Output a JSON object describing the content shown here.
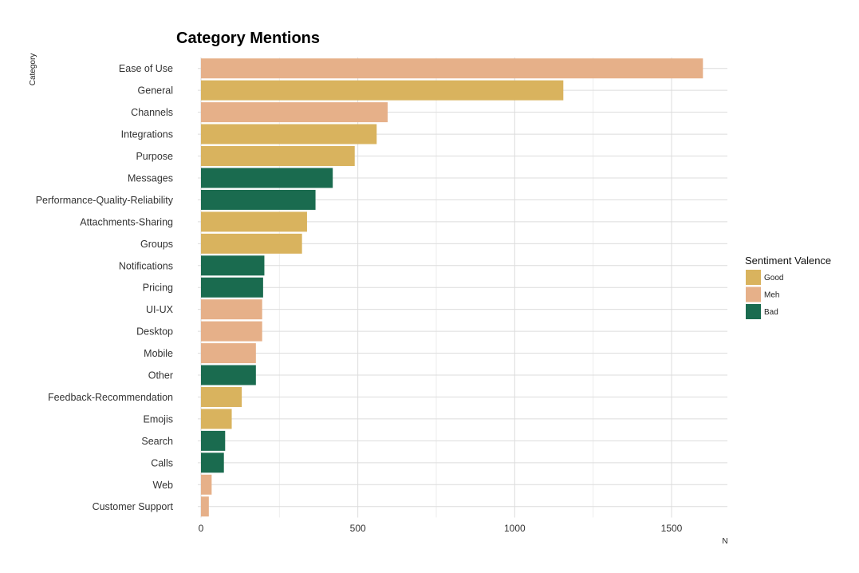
{
  "chart_data": {
    "type": "bar",
    "orientation": "horizontal",
    "title": "Category Mentions",
    "xlabel": "N",
    "ylabel": "Category",
    "xlim": [
      0,
      1680
    ],
    "x_ticks": [
      0,
      500,
      1000,
      1500
    ],
    "grid": true,
    "legend": {
      "title": "Sentiment Valence",
      "placement": "right",
      "entries": [
        {
          "label": "Good",
          "color": "#D9B35E"
        },
        {
          "label": "Meh",
          "color": "#E6B089"
        },
        {
          "label": "Bad",
          "color": "#1A6B4F"
        }
      ]
    },
    "bars": [
      {
        "category": "Ease of Use",
        "value": 1600,
        "sentiment": "Meh"
      },
      {
        "category": "General",
        "value": 1155,
        "sentiment": "Good"
      },
      {
        "category": "Channels",
        "value": 595,
        "sentiment": "Meh"
      },
      {
        "category": "Integrations",
        "value": 560,
        "sentiment": "Good"
      },
      {
        "category": "Purpose",
        "value": 490,
        "sentiment": "Good"
      },
      {
        "category": "Messages",
        "value": 420,
        "sentiment": "Bad"
      },
      {
        "category": "Performance-Quality-Reliability",
        "value": 365,
        "sentiment": "Bad"
      },
      {
        "category": "Attachments-Sharing",
        "value": 338,
        "sentiment": "Good"
      },
      {
        "category": "Groups",
        "value": 322,
        "sentiment": "Good"
      },
      {
        "category": "Notifications",
        "value": 202,
        "sentiment": "Bad"
      },
      {
        "category": "Pricing",
        "value": 198,
        "sentiment": "Bad"
      },
      {
        "category": "UI-UX",
        "value": 195,
        "sentiment": "Meh"
      },
      {
        "category": "Desktop",
        "value": 195,
        "sentiment": "Meh"
      },
      {
        "category": "Mobile",
        "value": 175,
        "sentiment": "Meh"
      },
      {
        "category": "Other",
        "value": 175,
        "sentiment": "Bad"
      },
      {
        "category": "Feedback-Recommendation",
        "value": 130,
        "sentiment": "Good"
      },
      {
        "category": "Emojis",
        "value": 98,
        "sentiment": "Good"
      },
      {
        "category": "Search",
        "value": 77,
        "sentiment": "Bad"
      },
      {
        "category": "Calls",
        "value": 73,
        "sentiment": "Bad"
      },
      {
        "category": "Web",
        "value": 34,
        "sentiment": "Meh"
      },
      {
        "category": "Customer Support",
        "value": 25,
        "sentiment": "Meh"
      }
    ]
  }
}
